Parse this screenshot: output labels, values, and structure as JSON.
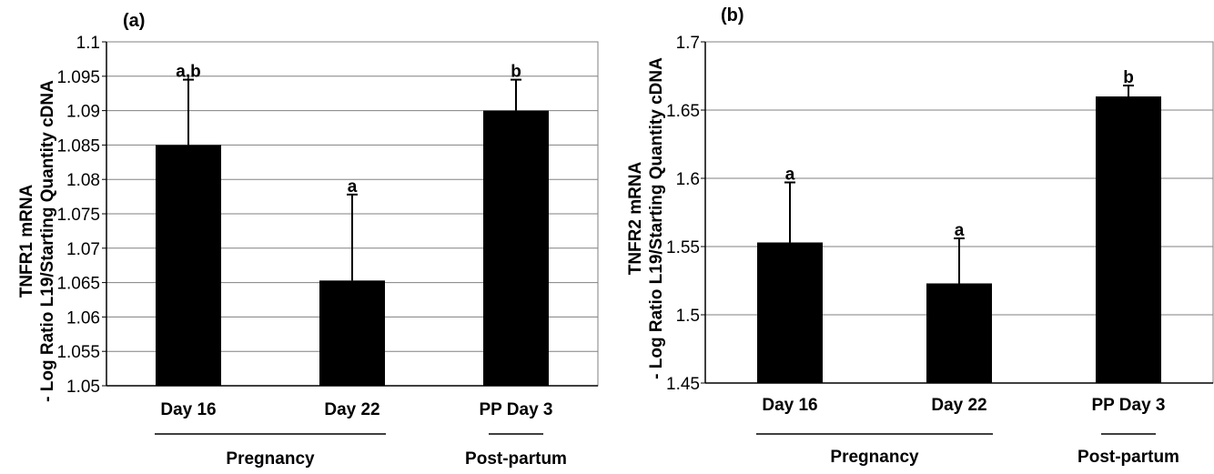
{
  "chart_data": [
    {
      "type": "bar",
      "panel_label": "(a)",
      "ylabel_line1": "TNFR1 mRNA",
      "ylabel_line2": "- Log Ratio L19/Starting Quantity cDNA",
      "categories": [
        "Day 16",
        "Day 22",
        "PP Day 3"
      ],
      "values": [
        1.085,
        1.0653,
        1.09
      ],
      "error_upper": [
        0.0095,
        0.0125,
        0.0045
      ],
      "significance": [
        "a,b",
        "a",
        "b"
      ],
      "ylim": [
        1.05,
        1.1
      ],
      "yticks": [
        "1.05",
        "1.055",
        "1.06",
        "1.065",
        "1.07",
        "1.075",
        "1.08",
        "1.085",
        "1.09",
        "1.095",
        "1.1"
      ],
      "groups": [
        {
          "label": "Pregnancy",
          "span": [
            0,
            1
          ]
        },
        {
          "label": "Post-partum",
          "span": [
            2,
            2
          ]
        }
      ],
      "grid": true,
      "bar_color": "#000000"
    },
    {
      "type": "bar",
      "panel_label": "(b)",
      "ylabel_line1": "TNFR2 mRNA",
      "ylabel_line2": "- Log Ratio L19/Starting Quantity cDNA",
      "categories": [
        "Day 16",
        "Day 22",
        "PP Day 3"
      ],
      "values": [
        1.553,
        1.523,
        1.66
      ],
      "error_upper": [
        0.044,
        0.033,
        0.008
      ],
      "significance": [
        "a",
        "a",
        "b"
      ],
      "ylim": [
        1.45,
        1.7
      ],
      "yticks": [
        "1.45",
        "1.5",
        "1.55",
        "1.6",
        "1.65",
        "1.7"
      ],
      "groups": [
        {
          "label": "Pregnancy",
          "span": [
            0,
            1
          ]
        },
        {
          "label": "Post-partum",
          "span": [
            2,
            2
          ]
        }
      ],
      "grid": true,
      "bar_color": "#000000"
    }
  ]
}
